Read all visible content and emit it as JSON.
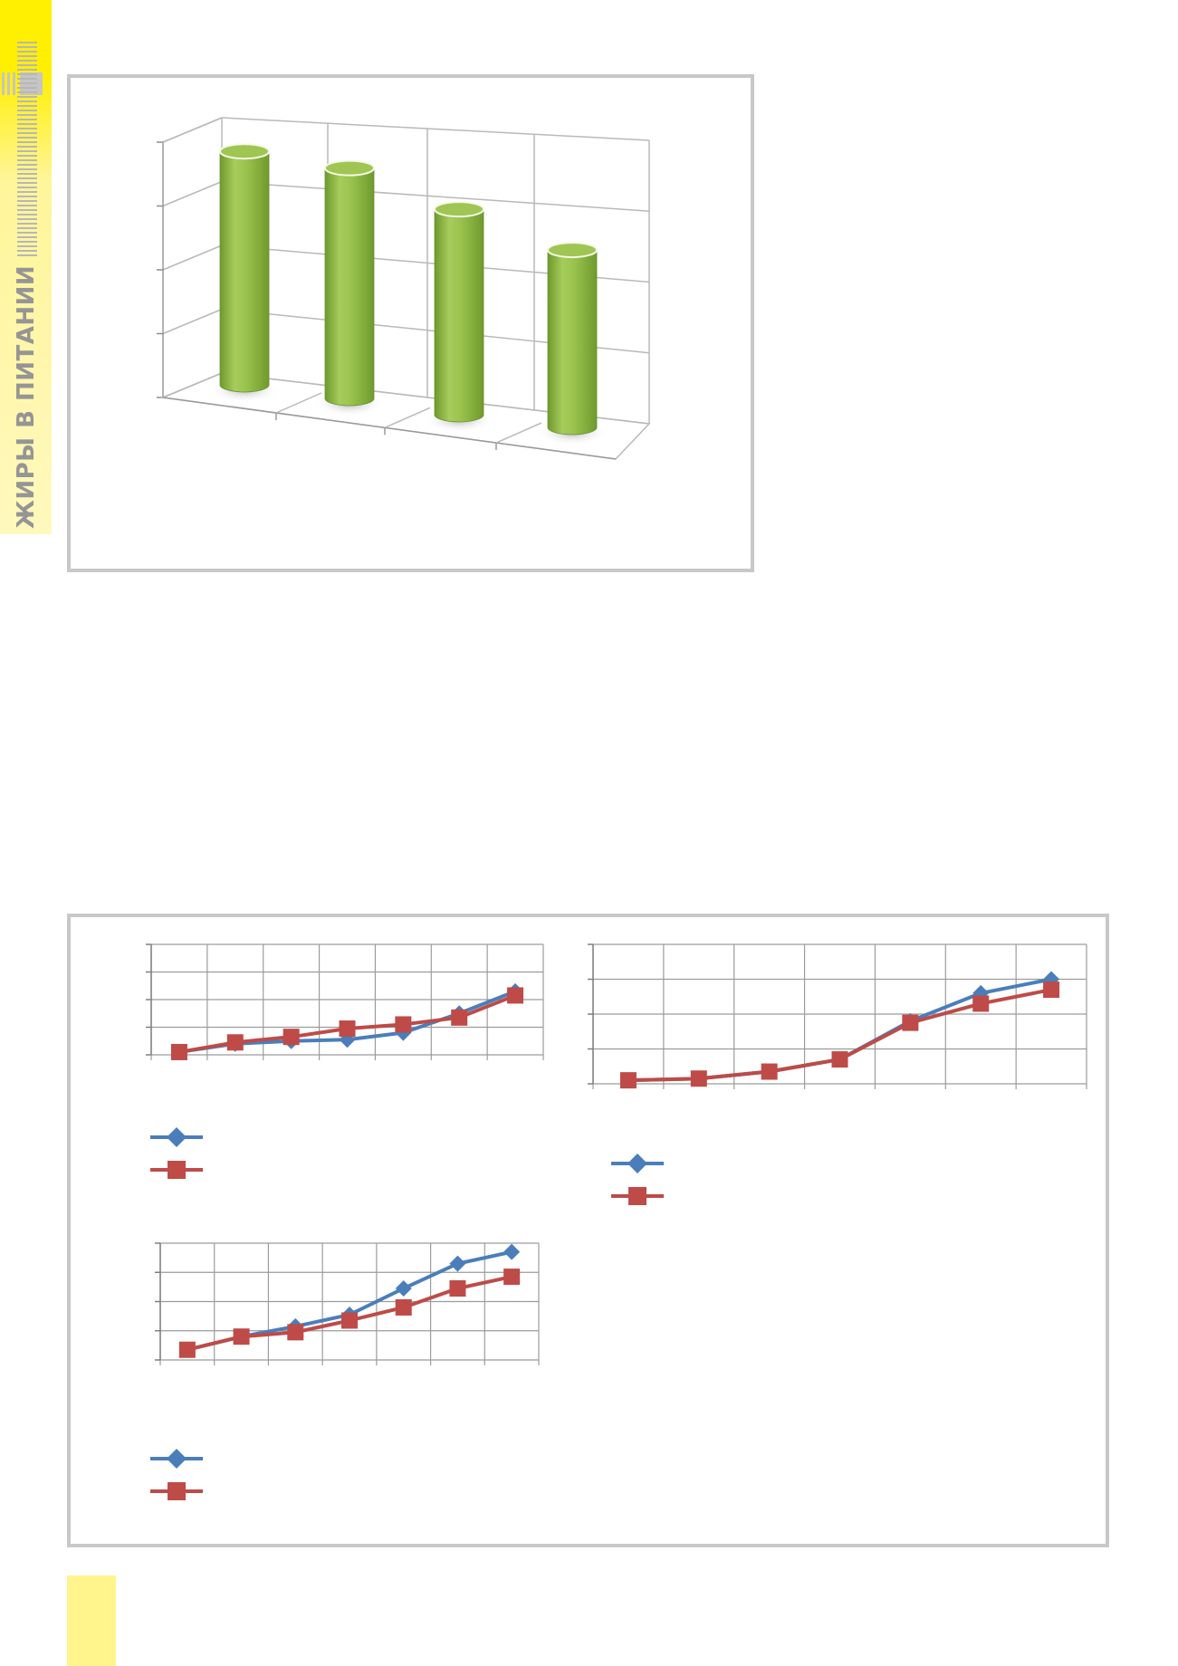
{
  "side_header": {
    "title": "ЖИРЫ В ПИТАНИИ"
  },
  "colors": {
    "accent_yellow": "#ffef00",
    "pale_yellow": "#fff58c",
    "series_blue": "#4a7ebb",
    "series_red": "#be4b48",
    "cylinder_green": "#8fba42",
    "frame_gray": "#c8c8c8"
  },
  "chart_data": [
    {
      "type": "bar",
      "style": "3d-cylinder",
      "title": "",
      "categories": [
        "",
        "",
        "",
        ""
      ],
      "values": [
        3.75,
        3.7,
        3.3,
        2.85
      ],
      "ylim": [
        0,
        4
      ],
      "grid": true,
      "legend": "none"
    },
    {
      "type": "line",
      "title": "",
      "x": [
        1,
        2,
        3,
        4,
        5,
        6,
        7
      ],
      "ylim": [
        0,
        4
      ],
      "grid": true,
      "legend": "bottom",
      "series": [
        {
          "marker": "diamond",
          "color": "#4a7ebb",
          "values": [
            0.1,
            0.4,
            0.5,
            0.55,
            0.8,
            1.5,
            2.3
          ]
        },
        {
          "marker": "square",
          "color": "#be4b48",
          "values": [
            0.1,
            0.45,
            0.65,
            0.95,
            1.1,
            1.35,
            2.15
          ]
        }
      ]
    },
    {
      "type": "line",
      "title": "",
      "x": [
        1,
        2,
        3,
        4,
        5,
        6,
        7
      ],
      "ylim": [
        0,
        4
      ],
      "grid": true,
      "legend": "bottom",
      "series": [
        {
          "marker": "diamond",
          "color": "#4a7ebb",
          "values": [
            0.1,
            0.15,
            0.35,
            0.7,
            1.8,
            2.6,
            3.0
          ]
        },
        {
          "marker": "square",
          "color": "#be4b48",
          "values": [
            0.1,
            0.15,
            0.35,
            0.7,
            1.75,
            2.3,
            2.7
          ]
        }
      ]
    },
    {
      "type": "line",
      "title": "",
      "x": [
        1,
        2,
        3,
        4,
        5,
        6,
        7
      ],
      "ylim": [
        0,
        4
      ],
      "grid": true,
      "legend": "bottom",
      "series": [
        {
          "marker": "diamond",
          "color": "#4a7ebb",
          "values": [
            0.35,
            0.8,
            1.15,
            1.55,
            2.45,
            3.3,
            3.7
          ]
        },
        {
          "marker": "square",
          "color": "#be4b48",
          "values": [
            0.35,
            0.8,
            0.95,
            1.35,
            1.8,
            2.45,
            2.85
          ]
        }
      ]
    }
  ]
}
